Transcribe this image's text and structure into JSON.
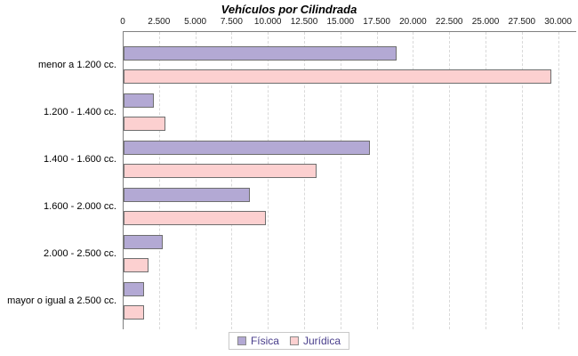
{
  "chart_data": {
    "type": "bar",
    "orientation": "horizontal",
    "title": "Vehículos por Cilindrada",
    "categories": [
      "menor a 1.200 cc.",
      "1.200 - 1.400 cc.",
      "1.400 - 1.600 cc.",
      "1.600 - 2.000 cc.",
      "2.000 - 2.500 cc.",
      "mayor o igual a 2.500 cc."
    ],
    "series": [
      {
        "name": "Física",
        "color": "#b3a9d4",
        "values": [
          18800,
          2100,
          17000,
          8700,
          2700,
          1400
        ]
      },
      {
        "name": "Jurídica",
        "color": "#fcd0d0",
        "values": [
          29500,
          2900,
          13300,
          9800,
          1700,
          1400
        ]
      }
    ],
    "xlim": [
      0,
      30000
    ],
    "x_ticks": [
      0,
      2500,
      5000,
      7500,
      10000,
      12500,
      15000,
      17500,
      20000,
      22500,
      25000,
      27500,
      30000
    ],
    "x_tick_labels": [
      "0",
      "2.500",
      "5.000",
      "7.500",
      "10.000",
      "12.500",
      "15.000",
      "17.500",
      "20.000",
      "22.500",
      "25.000",
      "27.500",
      "30.000"
    ],
    "grid": "dashed-vertical-from-top-axis",
    "legend_position": "bottom-center"
  },
  "colors": {
    "fisica_fill": "#b3a9d4",
    "juridica_fill": "#fcd0d0",
    "bar_border": "#6e6e6e",
    "axis": "#808080",
    "gridline": "#d9d9d9",
    "legend_text": "#483d8b",
    "legend_border": "#c9c9c9",
    "background": "#ffffff"
  }
}
